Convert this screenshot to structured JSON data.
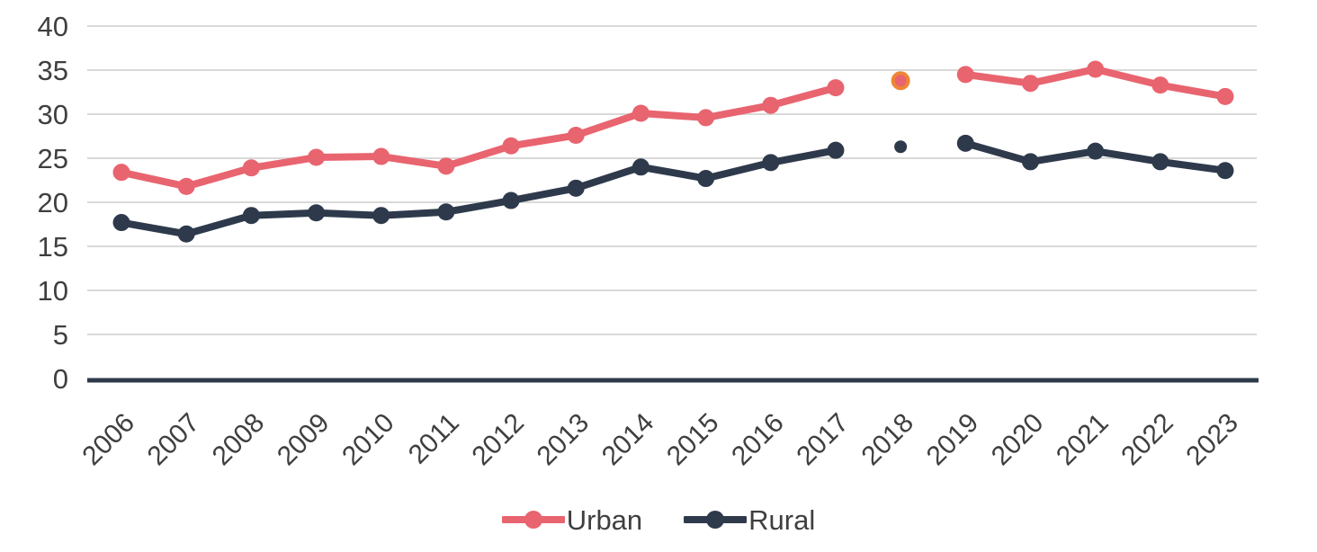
{
  "chart_data": {
    "type": "line",
    "title": "",
    "xlabel": "",
    "ylabel": "",
    "categories": [
      "2006",
      "2007",
      "2008",
      "2009",
      "2010",
      "2011",
      "2012",
      "2013",
      "2014",
      "2015",
      "2016",
      "2017",
      "2018",
      "2019",
      "2020",
      "2021",
      "2022",
      "2023"
    ],
    "series": [
      {
        "name": "Urban",
        "color": "#E8646F",
        "values": [
          23.4,
          21.8,
          23.9,
          25.1,
          25.2,
          24.1,
          26.4,
          27.6,
          30.1,
          29.6,
          31.0,
          33.0,
          33.8,
          34.5,
          33.5,
          35.1,
          33.3,
          32.0
        ],
        "break_at_index": 12,
        "highlight_point": {
          "index": 12,
          "ring_color": "#EE8633"
        }
      },
      {
        "name": "Rural",
        "color": "#2E3A4C",
        "values": [
          17.7,
          16.4,
          18.5,
          18.8,
          18.5,
          18.9,
          20.2,
          21.6,
          24.0,
          22.7,
          24.5,
          25.9,
          26.3,
          26.7,
          24.6,
          25.8,
          24.6,
          23.6
        ],
        "break_at_index": 12
      }
    ],
    "y_axis": {
      "ticks": [
        "0",
        "5",
        "10",
        "15",
        "20",
        "25",
        "30",
        "35",
        "40"
      ],
      "ylim": [
        0,
        40
      ]
    },
    "grid": true,
    "legend_position": "bottom",
    "colors": {
      "gridline": "#D9D9D9",
      "axis_line": "#2E3A4C",
      "tick_label": "#3F3F3F",
      "background": "#FFFFFF"
    }
  },
  "legend": {
    "items": [
      {
        "label": "Urban"
      },
      {
        "label": "Rural"
      }
    ]
  }
}
